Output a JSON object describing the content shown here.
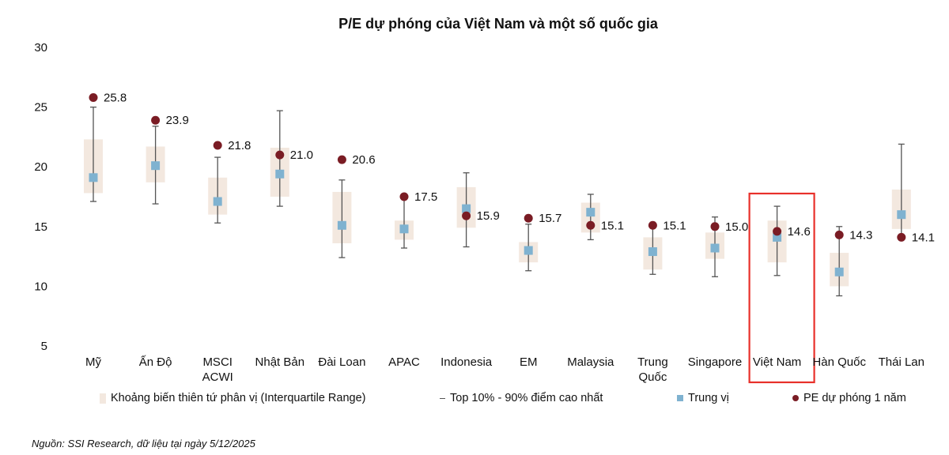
{
  "chart_data": {
    "type": "box-range",
    "title": "P/E dự phóng của Việt Nam và một số quốc gia",
    "ylim": [
      5,
      30
    ],
    "yticks": [
      5,
      10,
      15,
      20,
      25,
      30
    ],
    "grid": false,
    "legend_position": "bottom",
    "categories": [
      "Mỹ",
      "Ấn Độ",
      "MSCI ACWI",
      "Nhật Bản",
      "Đài Loan",
      "APAC",
      "Indonesia",
      "EM",
      "Malaysia",
      "Trung Quốc",
      "Singapore",
      "Việt Nam",
      "Hàn Quốc",
      "Thái Lan"
    ],
    "category_lines": [
      [
        "Mỹ"
      ],
      [
        "Ấn Độ"
      ],
      [
        "MSCI",
        "ACWI"
      ],
      [
        "Nhật Bản"
      ],
      [
        "Đài Loan"
      ],
      [
        "APAC"
      ],
      [
        "Indonesia"
      ],
      [
        "EM"
      ],
      [
        "Malaysia"
      ],
      [
        "Trung",
        "Quốc"
      ],
      [
        "Singapore"
      ],
      [
        "Việt Nam"
      ],
      [
        "Hàn Quốc"
      ],
      [
        "Thái Lan"
      ]
    ],
    "series": [
      {
        "name": "Khoảng biến thiên tứ phân vị (Interquartile Range)",
        "type": "range-box",
        "low": [
          17.8,
          18.7,
          16.0,
          17.5,
          13.6,
          13.9,
          14.9,
          12.0,
          14.5,
          11.4,
          12.3,
          12.0,
          10.0,
          14.8
        ],
        "high": [
          22.3,
          21.7,
          19.1,
          21.6,
          17.9,
          15.5,
          18.3,
          13.7,
          17.0,
          14.1,
          14.5,
          15.5,
          12.8,
          18.1
        ]
      },
      {
        "name": "Top 10% - 90% điểm cao nhất",
        "type": "whisker",
        "low": [
          17.1,
          16.9,
          15.3,
          16.7,
          12.4,
          13.2,
          13.3,
          11.3,
          13.9,
          11.0,
          10.8,
          10.9,
          9.2,
          14.1
        ],
        "high": [
          25.0,
          23.4,
          20.8,
          24.7,
          18.9,
          17.5,
          19.5,
          15.2,
          17.7,
          15.1,
          15.8,
          16.7,
          15.0,
          21.9
        ]
      },
      {
        "name": "Trung vị",
        "type": "marker-square",
        "values": [
          19.1,
          20.1,
          17.1,
          19.4,
          15.1,
          14.8,
          16.5,
          13.0,
          16.2,
          12.9,
          13.2,
          14.1,
          11.2,
          16.0
        ]
      },
      {
        "name": "PE dự phóng 1 năm",
        "type": "marker-circle",
        "values": [
          25.8,
          23.9,
          21.8,
          21.0,
          20.6,
          17.5,
          15.9,
          15.7,
          15.1,
          15.1,
          15.0,
          14.6,
          14.3,
          14.1
        ],
        "labels": [
          "25.8",
          "23.9",
          "21.8",
          "21.0",
          "20.6",
          "17.5",
          "15.9",
          "15.7",
          "15.1",
          "15.1",
          "15.0",
          "14.6",
          "14.3",
          "14.1"
        ]
      }
    ],
    "highlight": "Việt Nam",
    "colors": {
      "box": "#f3e8df",
      "whisker": "#555555",
      "median": "#7fb2d0",
      "pe": "#7a1c24",
      "highlight": "#e8302a"
    }
  },
  "source": "Nguồn: SSI Research, dữ liệu tại ngày 5/12/2025"
}
